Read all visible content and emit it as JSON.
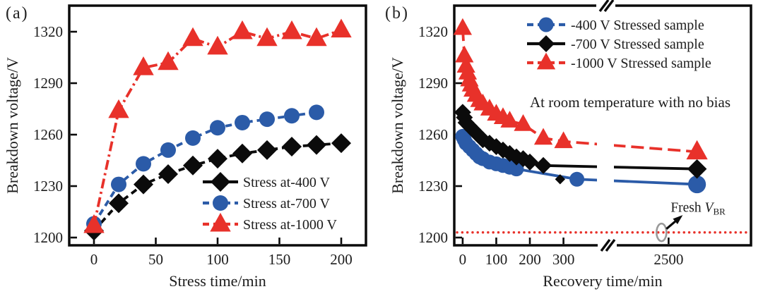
{
  "figure": {
    "panel_a_label": "(a)",
    "panel_b_label": "(b)"
  },
  "colors": {
    "black": "#0b0b0b",
    "blue": "#2b5ba8",
    "red": "#e8312a",
    "gray": "#999999",
    "text": "#1c1c1c",
    "ref_line_red": "#e8312a"
  },
  "chart_data": [
    {
      "id": "a",
      "type": "line",
      "xlabel": "Stress time/min",
      "ylabel": "Breakdown voltage/V",
      "xlim": [
        -20,
        220
      ],
      "ylim": [
        1195,
        1335
      ],
      "xtick_values": [
        0,
        50,
        100,
        150,
        200
      ],
      "xtick_labels": [
        "0",
        "50",
        "100",
        "150",
        "200"
      ],
      "ytick_values": [
        1200,
        1230,
        1260,
        1290,
        1320
      ],
      "ytick_labels": [
        "1200",
        "1230",
        "1260",
        "1290",
        "1320"
      ],
      "grid": false,
      "legend_position": "lower right inside",
      "series": [
        {
          "name": "Stress at-400 V",
          "marker": "diamond",
          "color": "black",
          "line": "dashed",
          "legend_line": "solid",
          "points": [
            [
              0,
              1204
            ],
            [
              20,
              1220
            ],
            [
              40,
              1231
            ],
            [
              60,
              1237
            ],
            [
              80,
              1242
            ],
            [
              100,
              1246
            ],
            [
              120,
              1249
            ],
            [
              140,
              1251
            ],
            [
              160,
              1253
            ],
            [
              180,
              1254
            ],
            [
              200,
              1255
            ]
          ]
        },
        {
          "name": "Stress at-700 V",
          "marker": "circle",
          "color": "blue",
          "line": "dashed",
          "legend_line": "dashed",
          "points": [
            [
              0,
              1208
            ],
            [
              20,
              1231
            ],
            [
              40,
              1243
            ],
            [
              60,
              1251
            ],
            [
              80,
              1258
            ],
            [
              100,
              1264
            ],
            [
              120,
              1267
            ],
            [
              140,
              1269
            ],
            [
              160,
              1271
            ],
            [
              180,
              1273
            ]
          ]
        },
        {
          "name": "Stress at-1000 V",
          "marker": "triangle",
          "color": "red",
          "line": "dashdot",
          "legend_line": "dashed",
          "points": [
            [
              0,
              1207
            ],
            [
              20,
              1274
            ],
            [
              40,
              1299
            ],
            [
              60,
              1302
            ],
            [
              80,
              1316
            ],
            [
              100,
              1311
            ],
            [
              120,
              1320
            ],
            [
              140,
              1316
            ],
            [
              160,
              1320
            ],
            [
              180,
              1316
            ],
            [
              200,
              1321
            ]
          ]
        }
      ]
    },
    {
      "id": "b",
      "type": "line",
      "xlabel": "Recovery time/min",
      "ylabel": "Breakdown voltage/V",
      "xlim": [
        -25,
        3080
      ],
      "ylim": [
        1195,
        1335
      ],
      "axis_break": {
        "between": [
          385,
          2150
        ]
      },
      "xtick_values": [
        0,
        100,
        200,
        300,
        2500
      ],
      "xtick_labels": [
        "0",
        "100",
        "200",
        "300",
        "2500"
      ],
      "ytick_values": [
        1200,
        1230,
        1260,
        1290,
        1320
      ],
      "ytick_labels": [
        "1200",
        "1230",
        "1260",
        "1290",
        "1320"
      ],
      "grid": false,
      "legend_position": "upper inside",
      "annotation": "At room temperature with no bias",
      "ref_line": {
        "y": 1203,
        "style": "dotted",
        "color": "red"
      },
      "fresh_marker": {
        "x": 2450,
        "y": 1203,
        "shape": "open-ellipse",
        "color": "gray"
      },
      "fresh_label": {
        "prefix": "Fresh ",
        "symbol": "V",
        "subscript": "BR"
      },
      "series": [
        {
          "name": "-400 V Stressed sample",
          "marker": "circle",
          "color": "blue",
          "line": "solid",
          "legend_line": "dashed",
          "points": [
            [
              0,
              1259
            ],
            [
              5,
              1257
            ],
            [
              10,
              1255
            ],
            [
              20,
              1253
            ],
            [
              30,
              1251
            ],
            [
              40,
              1249
            ],
            [
              50,
              1247
            ],
            [
              60,
              1246
            ],
            [
              80,
              1244
            ],
            [
              100,
              1243
            ],
            [
              120,
              1242
            ],
            [
              140,
              1241
            ],
            [
              160,
              1240
            ],
            [
              340,
              1234
            ],
            [
              2700,
              1231,
              1.2
            ]
          ]
        },
        {
          "name": "-700 V Stressed sample",
          "marker": "diamond",
          "color": "black",
          "line": "solid",
          "legend_line": "solid",
          "points": [
            [
              0,
              1273
            ],
            [
              5,
              1270
            ],
            [
              10,
              1267
            ],
            [
              20,
              1265
            ],
            [
              30,
              1263
            ],
            [
              40,
              1261
            ],
            [
              50,
              1259
            ],
            [
              60,
              1257
            ],
            [
              80,
              1255
            ],
            [
              100,
              1253
            ],
            [
              120,
              1251
            ],
            [
              140,
              1249
            ],
            [
              160,
              1247
            ],
            [
              180,
              1246
            ],
            [
              200,
              1244
            ],
            [
              240,
              1242
            ],
            [
              290,
              1234,
              0.6,
              0
            ],
            [
              2700,
              1240,
              1.15
            ]
          ]
        },
        {
          "name": "-1000 V Stressed sample",
          "marker": "triangle",
          "color": "red",
          "line": "longdash",
          "legend_line": "dashed",
          "points": [
            [
              0,
              1322
            ],
            [
              5,
              1306
            ],
            [
              10,
              1300
            ],
            [
              15,
              1296
            ],
            [
              20,
              1292
            ],
            [
              25,
              1289
            ],
            [
              30,
              1286
            ],
            [
              40,
              1283
            ],
            [
              50,
              1280
            ],
            [
              60,
              1278
            ],
            [
              80,
              1275
            ],
            [
              100,
              1272
            ],
            [
              120,
              1270
            ],
            [
              140,
              1268
            ],
            [
              180,
              1266
            ],
            [
              240,
              1258
            ],
            [
              300,
              1256
            ],
            [
              2700,
              1250,
              1.15
            ]
          ]
        }
      ]
    }
  ]
}
